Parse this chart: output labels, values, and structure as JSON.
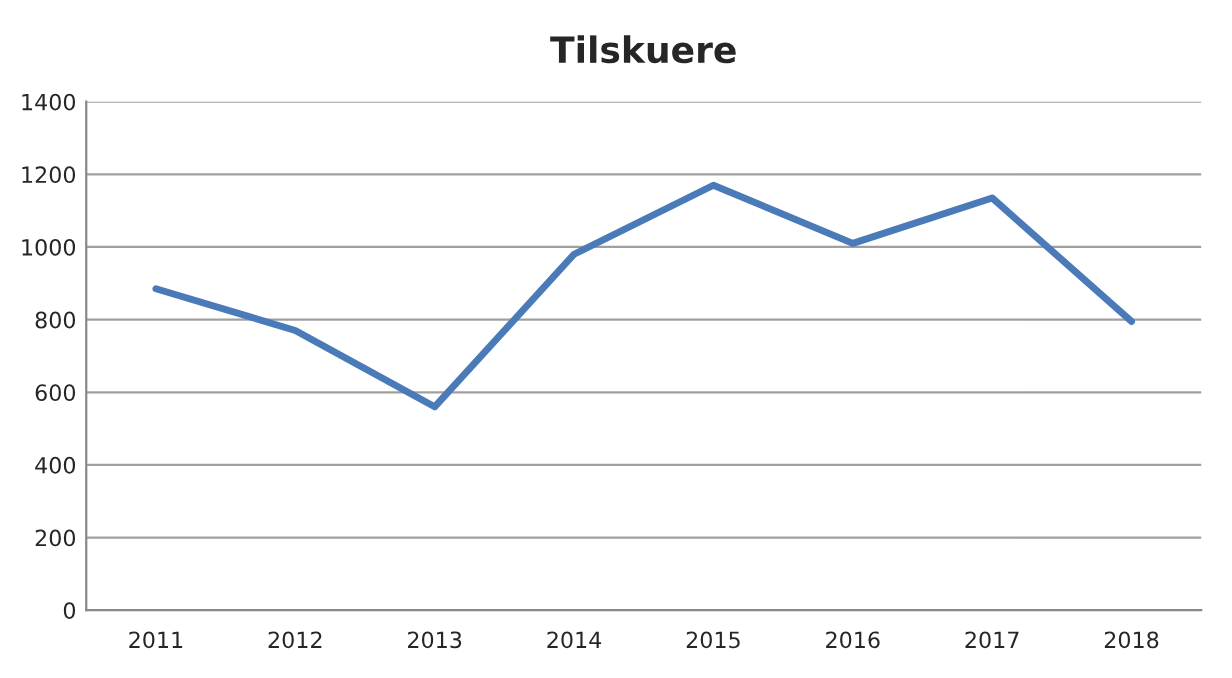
{
  "chart_data": {
    "type": "line",
    "title": "Tilskuere",
    "categories": [
      "2011",
      "2012",
      "2013",
      "2014",
      "2015",
      "2016",
      "2017",
      "2018"
    ],
    "series": [
      {
        "color": "#4a7ab8",
        "values": [
          885,
          770,
          560,
          980,
          1170,
          1010,
          1135,
          795
        ]
      }
    ],
    "ylim": [
      0,
      1400
    ],
    "yticks": [
      0,
      200,
      400,
      600,
      800,
      1000,
      1200,
      1400
    ],
    "grid": "y",
    "marker": "none",
    "line_style": "solid"
  }
}
